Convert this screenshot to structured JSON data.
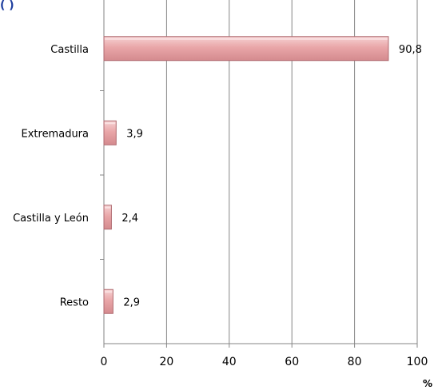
{
  "header_fragment": "(                )",
  "chart_data": {
    "type": "bar",
    "orientation": "horizontal",
    "categories": [
      "Castilla",
      "Extremadura",
      "Castilla y León",
      "Resto"
    ],
    "values": [
      90.8,
      3.9,
      2.4,
      2.9
    ],
    "value_labels": [
      "90,8",
      "3,9",
      "2,4",
      "2,9"
    ],
    "xlim": [
      0,
      100
    ],
    "xticks": [
      0,
      20,
      40,
      60,
      80,
      100
    ],
    "x_unit": "%",
    "grid": "vertical",
    "legend": "none",
    "bar_color": "#e8a0a3",
    "bar_edge_color": "#b06a70",
    "grid_color": "#868686",
    "header_color": "#1f3f9f"
  }
}
